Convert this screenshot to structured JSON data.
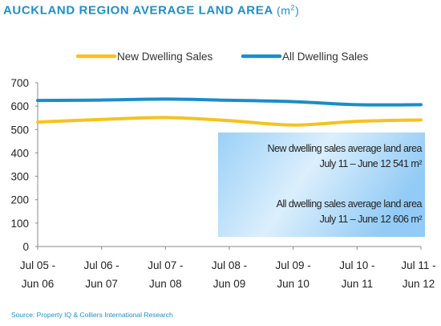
{
  "chart_data": {
    "type": "line",
    "title": "AUCKLAND REGION AVERAGE LAND AREA",
    "title_unit_prefix": "(m",
    "title_unit_sup": "2",
    "title_unit_suffix": ")",
    "categories": [
      [
        "Jul 05 -",
        "Jun 06"
      ],
      [
        "Jul 06 -",
        "Jun 07"
      ],
      [
        "Jul 07 -",
        "Jun 08"
      ],
      [
        "Jul 08 -",
        "Jun 09"
      ],
      [
        "Jul 09 -",
        "Jun 10"
      ],
      [
        "Jul 10 -",
        "Jun 11"
      ],
      [
        "Jul 11 -",
        "Jun 12"
      ]
    ],
    "yticks": [
      "0",
      "100",
      "200",
      "300",
      "400",
      "500",
      "600",
      "700"
    ],
    "ylim": [
      0,
      700
    ],
    "legend_position": "top",
    "series": [
      {
        "name": "New Dwelling Sales",
        "color": "#f7c21e",
        "values": [
          532,
          543,
          551,
          538,
          519,
          535,
          541
        ]
      },
      {
        "name": "All Dwelling Sales",
        "color": "#1a8dc8",
        "values": [
          624,
          626,
          630,
          625,
          619,
          606,
          606
        ]
      }
    ],
    "annotation": {
      "line1": "New dwelling sales average land area",
      "line2": "July 11 – June 12   541 m²",
      "line3": "All dwelling sales average  land area",
      "line4": "July 11 – June 12   606 m²"
    }
  },
  "source": "Source: Property IQ & Colliers International Research"
}
